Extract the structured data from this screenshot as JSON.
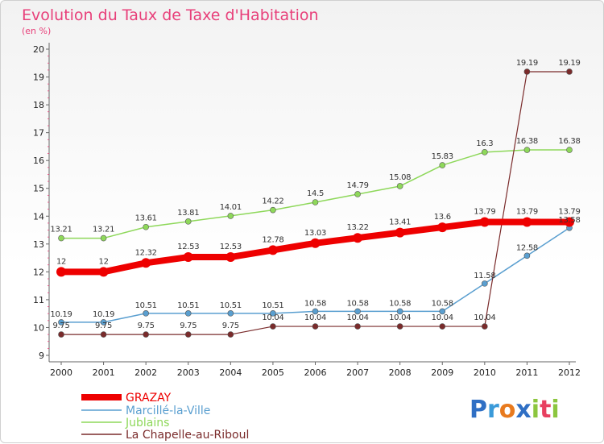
{
  "chart_data": {
    "type": "line",
    "title": "Evolution du Taux de Taxe d'Habitation",
    "subtitle": "(en %)",
    "x": [
      "2000",
      "2001",
      "2002",
      "2003",
      "2004",
      "2005",
      "2006",
      "2007",
      "2008",
      "2009",
      "2010",
      "2011",
      "2012"
    ],
    "ylim": [
      9,
      20
    ],
    "yticks": [
      9,
      10,
      11,
      12,
      13,
      14,
      15,
      16,
      17,
      18,
      19,
      20
    ],
    "grid": false,
    "legend_position": "bottom-left",
    "series": [
      {
        "name": "GRAZAY",
        "color": "#ee0000",
        "values": [
          12,
          12,
          12.32,
          12.53,
          12.53,
          12.78,
          13.03,
          13.22,
          13.41,
          13.6,
          13.79,
          13.79,
          13.79
        ],
        "labels": [
          "12",
          "12",
          "12.32",
          "12.53",
          "12.53",
          "12.78",
          "13.03",
          "13.22",
          "13.41",
          "13.6",
          "13.79",
          "13.79",
          "13.79"
        ]
      },
      {
        "name": "Marcillé-la-Ville",
        "color": "#5a9fd0",
        "values": [
          10.19,
          10.19,
          10.51,
          10.51,
          10.51,
          10.51,
          10.58,
          10.58,
          10.58,
          10.58,
          11.58,
          12.58,
          13.58
        ],
        "labels": [
          "10.19",
          "10.19",
          "10.51",
          "10.51",
          "10.51",
          "10.51",
          "10.58",
          "10.58",
          "10.58",
          "10.58",
          "11.58",
          "12.58",
          "13.58"
        ]
      },
      {
        "name": "Jublains",
        "color": "#8ed85a",
        "values": [
          13.21,
          13.21,
          13.61,
          13.81,
          14.01,
          14.22,
          14.5,
          14.79,
          15.08,
          15.83,
          16.3,
          16.38,
          16.38
        ],
        "labels": [
          "13.21",
          "13.21",
          "13.61",
          "13.81",
          "14.01",
          "14.22",
          "14.5",
          "14.79",
          "15.08",
          "15.83",
          "16.3",
          "16.38",
          "16.38"
        ]
      },
      {
        "name": "La Chapelle-au-Riboul",
        "color": "#7a2b2b",
        "values": [
          9.75,
          9.75,
          9.75,
          9.75,
          9.75,
          10.04,
          10.04,
          10.04,
          10.04,
          10.04,
          10.04,
          19.19,
          19.19
        ],
        "labels": [
          "9.75",
          "9.75",
          "9.75",
          "9.75",
          "9.75",
          "10.04",
          "10.04",
          "10.04",
          "10.04",
          "10.04",
          "10.04",
          "19.19",
          "19.19"
        ]
      }
    ]
  },
  "branding": {
    "logo_text": "Proxiti"
  }
}
